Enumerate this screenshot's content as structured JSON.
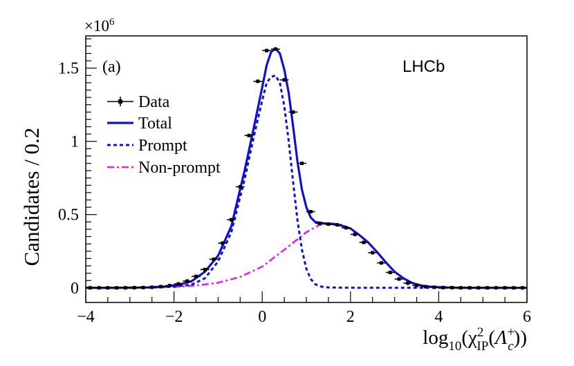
{
  "chart_data": {
    "type": "line",
    "title": "",
    "panel_label": "(a)",
    "experiment_label": "LHCb",
    "ylabel": "Candidates / 0.2",
    "xlabel": {
      "prefix": "log",
      "prefix_sub": "10",
      "chi": "χ",
      "chi_sup": "2",
      "chi_sub": "IP",
      "particle": "Λ",
      "particle_sup": "+",
      "particle_sub": "c"
    },
    "y_scale_label": "×10",
    "y_scale_exp": "6",
    "xlim": [
      -4,
      6
    ],
    "ylim": [
      -0.1,
      1.72
    ],
    "x_ticks": [
      -4,
      -2,
      0,
      2,
      4,
      6
    ],
    "x_tick_labels": [
      "−4",
      "−2",
      "0",
      "2",
      "4",
      "6"
    ],
    "y_ticks": [
      0,
      0.5,
      1,
      1.5
    ],
    "y_tick_labels": [
      "0",
      "0.5",
      "1",
      "1.5"
    ],
    "legend": {
      "position": "top-left",
      "entries": [
        {
          "label": "Data",
          "style": "marker"
        },
        {
          "label": "Total",
          "style": "solid"
        },
        {
          "label": "Prompt",
          "style": "dotted"
        },
        {
          "label": "Non-prompt",
          "style": "dashdot"
        }
      ]
    },
    "colors": {
      "data": "#000000",
      "total": "#1010d0",
      "prompt": "#1010d0",
      "nonprompt": "#e81ee8"
    },
    "series": [
      {
        "name": "Data",
        "style": "points",
        "x": [
          -3.9,
          -3.7,
          -3.5,
          -3.3,
          -3.1,
          -2.9,
          -2.7,
          -2.5,
          -2.3,
          -2.1,
          -1.9,
          -1.7,
          -1.5,
          -1.3,
          -1.1,
          -0.9,
          -0.7,
          -0.5,
          -0.3,
          -0.1,
          0.1,
          0.3,
          0.5,
          0.7,
          0.9,
          1.1,
          1.3,
          1.5,
          1.7,
          1.9,
          2.1,
          2.3,
          2.5,
          2.7,
          2.9,
          3.1,
          3.3,
          3.5,
          3.7,
          3.9,
          4.1,
          4.3,
          4.5,
          4.7,
          4.9,
          5.1,
          5.3,
          5.5,
          5.7,
          5.9
        ],
        "y": [
          0.0,
          0.0,
          0.0,
          0.0,
          0.0,
          0.001,
          0.002,
          0.004,
          0.008,
          0.015,
          0.027,
          0.046,
          0.078,
          0.125,
          0.195,
          0.305,
          0.465,
          0.69,
          1.04,
          1.41,
          1.62,
          1.63,
          1.42,
          1.2,
          0.85,
          0.52,
          0.44,
          0.435,
          0.43,
          0.41,
          0.365,
          0.31,
          0.24,
          0.17,
          0.105,
          0.06,
          0.032,
          0.016,
          0.008,
          0.004,
          0.002,
          0.001,
          0.0,
          0.0,
          0.0,
          0.0,
          0.0,
          0.0,
          0.0,
          0.0
        ]
      },
      {
        "name": "Total",
        "style": "solid",
        "x": [
          -4.0,
          -3.5,
          -3.0,
          -2.6,
          -2.2,
          -1.9,
          -1.6,
          -1.3,
          -1.0,
          -0.7,
          -0.4,
          -0.2,
          0.0,
          0.1,
          0.2,
          0.3,
          0.4,
          0.5,
          0.6,
          0.7,
          0.8,
          0.9,
          1.0,
          1.1,
          1.2,
          1.4,
          1.6,
          1.8,
          2.0,
          2.2,
          2.4,
          2.6,
          2.8,
          3.0,
          3.2,
          3.4,
          3.6,
          3.8,
          4.0,
          4.4,
          5.0,
          6.0
        ],
        "y": [
          0.0,
          0.0,
          0.001,
          0.003,
          0.009,
          0.02,
          0.045,
          0.11,
          0.22,
          0.42,
          0.8,
          1.08,
          1.37,
          1.52,
          1.61,
          1.635,
          1.6,
          1.49,
          1.33,
          1.1,
          0.86,
          0.67,
          0.55,
          0.48,
          0.45,
          0.44,
          0.435,
          0.425,
          0.405,
          0.36,
          0.31,
          0.245,
          0.175,
          0.11,
          0.065,
          0.033,
          0.016,
          0.008,
          0.004,
          0.001,
          0.0,
          0.0
        ]
      },
      {
        "name": "Prompt",
        "style": "dotted",
        "x": [
          -4.0,
          -3.0,
          -2.5,
          -2.0,
          -1.6,
          -1.3,
          -1.0,
          -0.7,
          -0.4,
          -0.2,
          0.0,
          0.1,
          0.2,
          0.3,
          0.4,
          0.5,
          0.6,
          0.7,
          0.8,
          0.9,
          1.0,
          1.1,
          1.2,
          1.3,
          1.5,
          1.8,
          2.5,
          6.0
        ],
        "y": [
          0.0,
          0.0,
          0.002,
          0.008,
          0.022,
          0.065,
          0.18,
          0.38,
          0.74,
          1.02,
          1.28,
          1.4,
          1.44,
          1.45,
          1.4,
          1.24,
          1.0,
          0.72,
          0.46,
          0.26,
          0.13,
          0.06,
          0.025,
          0.01,
          0.003,
          0.001,
          0.0,
          0.0
        ]
      },
      {
        "name": "Non-prompt",
        "style": "dashdot",
        "x": [
          -4.0,
          -3.0,
          -2.5,
          -2.0,
          -1.5,
          -1.0,
          -0.5,
          0.0,
          0.5,
          1.0,
          1.3,
          1.6,
          1.8,
          2.0,
          2.2,
          2.4,
          2.6,
          2.8,
          3.0,
          3.2,
          3.4,
          3.6,
          3.8,
          4.0,
          4.5,
          5.0,
          6.0
        ],
        "y": [
          0.0,
          0.0,
          0.002,
          0.006,
          0.016,
          0.035,
          0.075,
          0.145,
          0.26,
          0.38,
          0.43,
          0.44,
          0.43,
          0.405,
          0.36,
          0.31,
          0.245,
          0.175,
          0.11,
          0.065,
          0.033,
          0.016,
          0.008,
          0.004,
          0.001,
          0.0,
          0.0
        ]
      }
    ]
  }
}
